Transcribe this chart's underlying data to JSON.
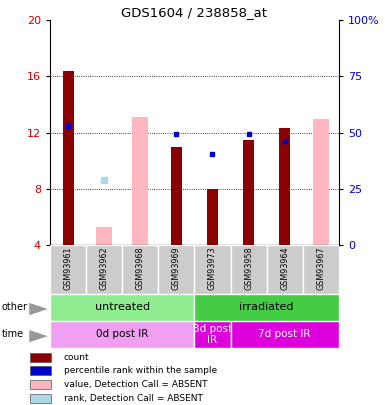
{
  "title": "GDS1604 / 238858_at",
  "samples": [
    "GSM93961",
    "GSM93962",
    "GSM93968",
    "GSM93969",
    "GSM93973",
    "GSM93958",
    "GSM93964",
    "GSM93967"
  ],
  "ylim_left": [
    4,
    20
  ],
  "ylim_right": [
    0,
    100
  ],
  "yticks_left": [
    4,
    8,
    12,
    16,
    20
  ],
  "yticks_right": [
    0,
    25,
    50,
    75,
    100
  ],
  "ytick_labels_right": [
    "0",
    "25",
    "50",
    "75",
    "100%"
  ],
  "red_bars": [
    16.4,
    null,
    null,
    11.0,
    8.0,
    11.5,
    12.3,
    null
  ],
  "pink_bars": [
    null,
    5.3,
    13.1,
    null,
    null,
    null,
    null,
    13.0
  ],
  "blue_squares": [
    12.5,
    null,
    null,
    11.9,
    10.5,
    11.9,
    11.4,
    null
  ],
  "light_blue_squares": [
    null,
    8.6,
    null,
    null,
    null,
    null,
    null,
    null
  ],
  "groups_other": [
    {
      "label": "untreated",
      "start": 0,
      "end": 4,
      "color": "#90ee90"
    },
    {
      "label": "irradiated",
      "start": 4,
      "end": 8,
      "color": "#44cc44"
    }
  ],
  "groups_time": [
    {
      "label": "0d post IR",
      "start": 0,
      "end": 4,
      "color": "#f0a0f0"
    },
    {
      "label": "3d post\nIR",
      "start": 4,
      "end": 5,
      "color": "#dd00dd"
    },
    {
      "label": "7d post IR",
      "start": 5,
      "end": 8,
      "color": "#dd00dd"
    }
  ],
  "legend_items": [
    {
      "color": "#8b0000",
      "label": "count"
    },
    {
      "color": "#0000cd",
      "label": "percentile rank within the sample"
    },
    {
      "color": "#ffb6c1",
      "label": "value, Detection Call = ABSENT"
    },
    {
      "color": "#add8e6",
      "label": "rank, Detection Call = ABSENT"
    }
  ],
  "red_bar_width": 0.3,
  "pink_bar_width": 0.45,
  "left_axis_color": "#cc0000",
  "right_axis_color": "#0000cc"
}
